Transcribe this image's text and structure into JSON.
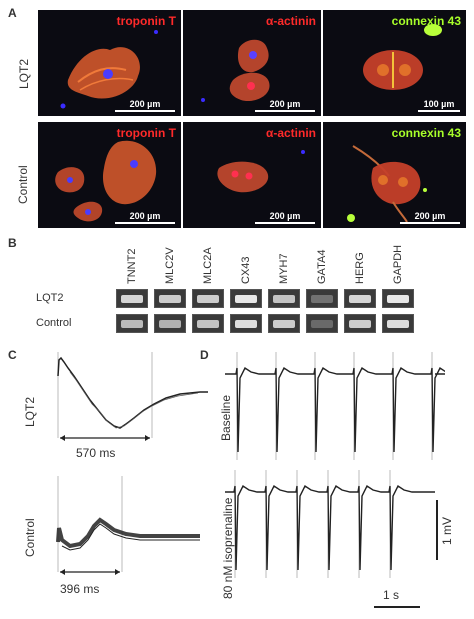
{
  "panels": {
    "a": "A",
    "b": "B",
    "c": "C",
    "d": "D"
  },
  "panel_a": {
    "rows": [
      "LQT2",
      "Control"
    ],
    "stains": [
      "troponin T",
      "α-actinin",
      "connexin 43"
    ],
    "scalebars": {
      "lqt2": [
        "200 µm",
        "200 µm",
        "100 µm"
      ],
      "control": [
        "200 µm",
        "200 µm",
        "200 µm"
      ]
    },
    "colors": {
      "troponin": "#ff2a2a",
      "actinin": "#ff2a2a",
      "connexin": "#a8ff2a"
    }
  },
  "panel_b": {
    "genes": [
      "TNNT2",
      "MLC2V",
      "MLC2A",
      "CX43",
      "MYH7",
      "GATA4",
      "HERG",
      "GAPDH"
    ],
    "rows": [
      "LQT2",
      "Control"
    ],
    "band_intensity": {
      "lqt2": [
        0.85,
        0.8,
        0.8,
        0.95,
        0.75,
        0.3,
        0.85,
        0.95
      ],
      "control": [
        0.7,
        0.65,
        0.75,
        0.9,
        0.8,
        0.25,
        0.8,
        0.9
      ]
    }
  },
  "panel_c": {
    "rows": [
      "LQT2",
      "Control"
    ],
    "durations": [
      "570 ms",
      "396 ms"
    ]
  },
  "panel_d": {
    "conditions": [
      "Baseline",
      "80 nM isoprenaline"
    ],
    "scale_voltage": "1 mV",
    "scale_time": "1 s"
  }
}
